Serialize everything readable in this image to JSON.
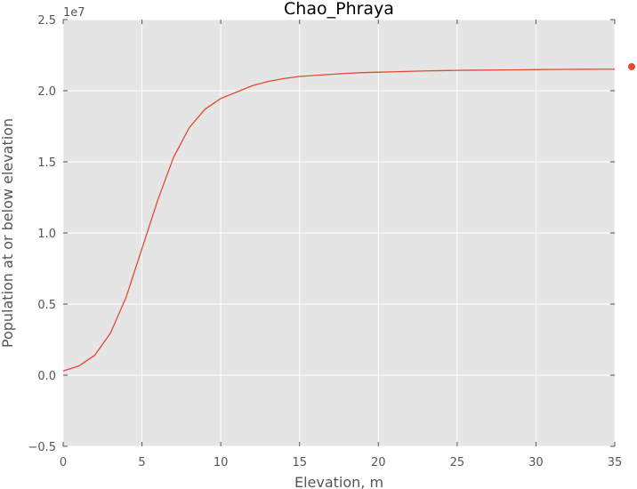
{
  "chart_data": {
    "type": "line",
    "title": "Chao_Phraya",
    "xlabel": "Elevation, m",
    "ylabel": "Population at or below elevation",
    "y_offset_label": "1e7",
    "y_scale": 10000000,
    "xlim": [
      0,
      35
    ],
    "ylim": [
      -5000000,
      25000000
    ],
    "x_ticks": [
      0,
      5,
      10,
      15,
      20,
      25,
      30,
      35
    ],
    "x_tick_labels": [
      "0",
      "5",
      "10",
      "15",
      "20",
      "25",
      "30",
      "35"
    ],
    "y_ticks": [
      -5000000,
      0,
      5000000,
      10000000,
      15000000,
      20000000,
      25000000
    ],
    "y_tick_labels": [
      "−0.5",
      "0.0",
      "0.5",
      "1.0",
      "1.5",
      "2.0",
      "2.5"
    ],
    "grid": true,
    "background_color": "#e5e5e5",
    "series": [
      {
        "color": "#e24a33",
        "x": [
          0,
          1,
          2,
          3,
          4,
          5,
          6,
          7,
          8,
          9,
          10,
          11,
          12,
          13,
          14,
          15,
          16,
          17,
          18,
          19,
          20,
          21,
          22,
          23,
          24,
          25,
          26,
          27,
          28,
          29,
          30,
          31,
          32,
          33,
          34,
          35
        ],
        "y": [
          300000,
          650000,
          1400000,
          2950000,
          5500000,
          8900000,
          12300000,
          15300000,
          17400000,
          18700000,
          19450000,
          19900000,
          20350000,
          20650000,
          20850000,
          21000000,
          21080000,
          21150000,
          21220000,
          21270000,
          21300000,
          21330000,
          21360000,
          21390000,
          21410000,
          21430000,
          21440000,
          21450000,
          21460000,
          21470000,
          21480000,
          21490000,
          21500000,
          21505000,
          21510000,
          21510000
        ]
      }
    ],
    "outlier_marker": {
      "color": "#e24a33"
    }
  }
}
